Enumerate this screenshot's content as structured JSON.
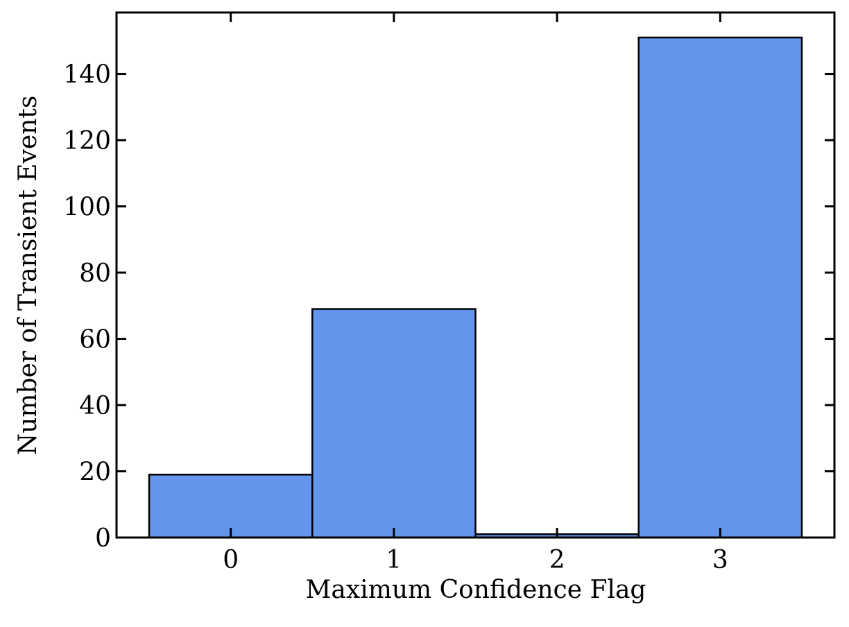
{
  "chart_data": {
    "type": "histogram",
    "x_label": "Maximum Confidence Flag",
    "y_label": "Number of Transient Events",
    "bins": [
      -0.5,
      0.5,
      1.5,
      2.5,
      3.5
    ],
    "values": [
      19,
      69,
      1,
      151
    ],
    "color": "#6495ed",
    "edge_color": "#000000",
    "xlim": [
      -0.7,
      3.7
    ],
    "ylim": [
      0,
      158.55
    ],
    "xticks": [
      0,
      1,
      2,
      3
    ],
    "yticks": [
      0,
      20,
      40,
      60,
      80,
      100,
      120,
      140
    ],
    "grid": false,
    "tick_direction": "in",
    "mirror_ticks": true
  }
}
